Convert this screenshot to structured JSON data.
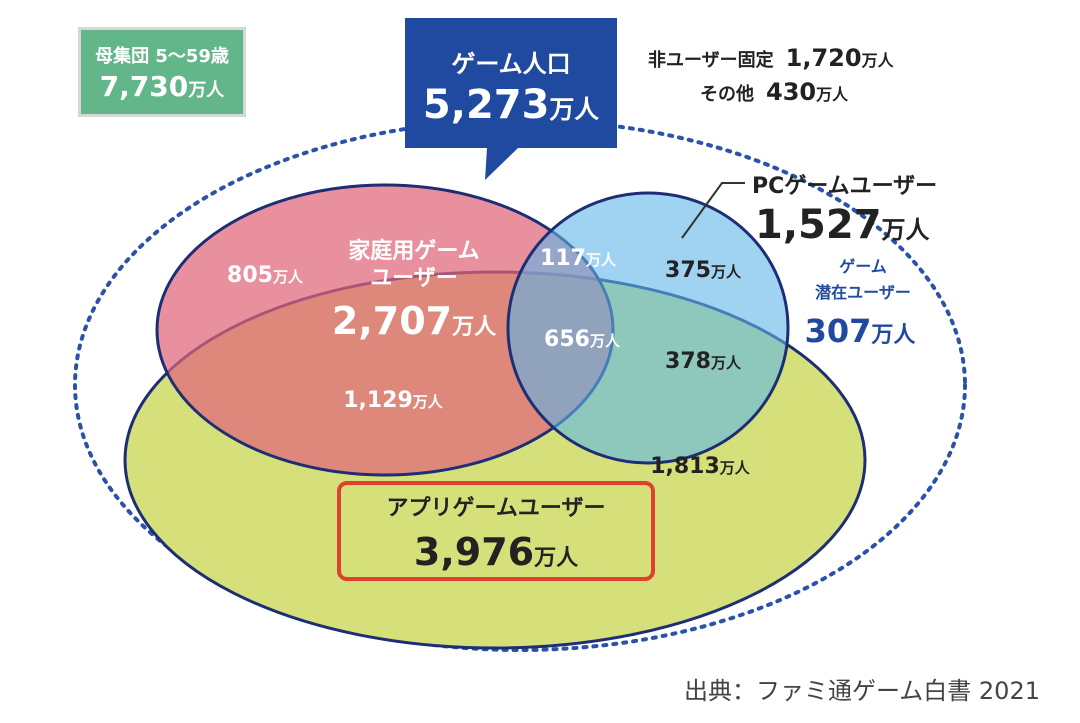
{
  "population_box": {
    "label": "母集団 5〜59歳",
    "value": "7,730",
    "unit": "万人"
  },
  "game_population": {
    "label": "ゲーム人口",
    "value": "5,273",
    "unit": "万人"
  },
  "non_user": {
    "fixed_label": "非ユーザー固定",
    "fixed_value": "1,720",
    "other_label": "その他",
    "other_value": "430",
    "unit": "万人"
  },
  "pc_users": {
    "label": "PCゲームユーザー",
    "value": "1,527",
    "unit": "万人"
  },
  "potential_users": {
    "label_line1": "ゲーム",
    "label_line2": "潜在ユーザー",
    "value": "307",
    "unit": "万人"
  },
  "console_users": {
    "label_line1": "家庭用ゲーム",
    "label_line2": "ユーザー",
    "value": "2,707",
    "unit": "万人"
  },
  "app_users": {
    "label": "アプリゲームユーザー",
    "value": "3,976",
    "unit": "万人"
  },
  "regions": {
    "console_only": "805",
    "console_pc": "117",
    "pc_only": "375",
    "all_three": "656",
    "pc_app": "378",
    "console_app": "1,129",
    "app_only": "1,813",
    "unit": "万人"
  },
  "source": "出典：ファミ通ゲーム白書 2021",
  "colors": {
    "population_box": "#63b58a",
    "game_callout": "#1f4aa0",
    "console_circle": "#e0657a",
    "pc_circle": "#5fb6e8",
    "app_circle": "#d5e07a",
    "highlight_border": "#e04030",
    "potential_text": "#1f4aa0"
  }
}
